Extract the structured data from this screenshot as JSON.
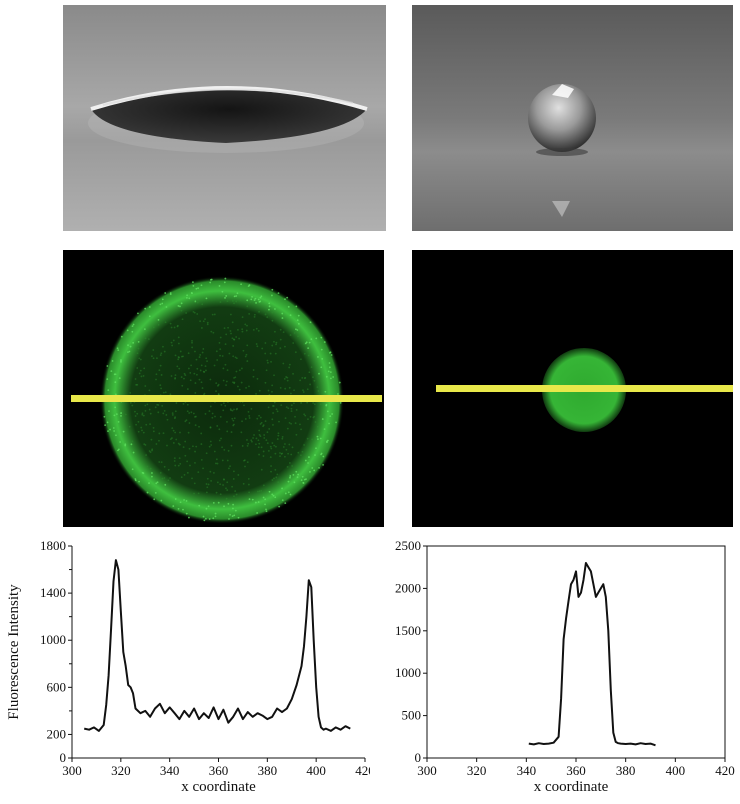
{
  "panels": {
    "top_left": {
      "content": "photo: flat droplet on surface (side view, grayscale)"
    },
    "top_right": {
      "content": "photo: spherical droplet on surface (side view, grayscale)"
    },
    "mid_left": {
      "content": "fluorescence image: green ring with yellow line profile"
    },
    "mid_right": {
      "content": "fluorescence image: filled green disc with yellow line profile"
    }
  },
  "colors": {
    "fluorescence": "#3fbf3f",
    "profile_line": "#e8e84a",
    "plot_line": "#111111"
  },
  "chart_data": [
    {
      "type": "line",
      "xlabel": "x coordinate",
      "ylabel": "Fluorescence Intensity",
      "xlim": [
        300,
        420
      ],
      "ylim": [
        0,
        1800
      ],
      "xticks": [
        300,
        320,
        340,
        360,
        380,
        400,
        420
      ],
      "yticks": [
        0,
        200,
        600,
        1000,
        1400,
        1800
      ],
      "grid": false,
      "series": [
        {
          "x": [
            305,
            307,
            309,
            311,
            313,
            314,
            315,
            316,
            317,
            318,
            319,
            320,
            321,
            322,
            323,
            324,
            325,
            326,
            328,
            330,
            332,
            334,
            336,
            338,
            340,
            342,
            344,
            346,
            348,
            350,
            352,
            354,
            356,
            358,
            360,
            362,
            364,
            366,
            368,
            370,
            372,
            374,
            376,
            378,
            380,
            382,
            384,
            386,
            388,
            390,
            392,
            394,
            395,
            396,
            397,
            398,
            399,
            400,
            401,
            402,
            403,
            404,
            406,
            408,
            410,
            412,
            414
          ],
          "y": [
            250,
            240,
            260,
            230,
            280,
            450,
            700,
            1100,
            1500,
            1680,
            1600,
            1250,
            900,
            780,
            620,
            600,
            550,
            420,
            380,
            400,
            350,
            420,
            460,
            380,
            430,
            380,
            330,
            400,
            350,
            420,
            330,
            380,
            340,
            430,
            330,
            410,
            300,
            350,
            420,
            330,
            390,
            350,
            380,
            360,
            330,
            350,
            420,
            390,
            420,
            500,
            620,
            780,
            950,
            1200,
            1510,
            1450,
            1000,
            600,
            350,
            260,
            240,
            250,
            230,
            260,
            240,
            270,
            250
          ]
        }
      ]
    },
    {
      "type": "line",
      "xlabel": "x coordinate",
      "ylabel": "",
      "xlim": [
        300,
        420
      ],
      "ylim": [
        0,
        2500
      ],
      "xticks": [
        300,
        320,
        340,
        360,
        380,
        400,
        420
      ],
      "yticks": [
        0,
        500,
        1000,
        1500,
        2000,
        2500
      ],
      "grid": false,
      "series": [
        {
          "x": [
            341,
            343,
            345,
            347,
            349,
            351,
            353,
            354,
            355,
            356,
            357,
            358,
            359,
            360,
            361,
            362,
            363,
            364,
            365,
            366,
            367,
            368,
            369,
            370,
            371,
            372,
            373,
            374,
            375,
            376,
            377,
            378,
            380,
            382,
            384,
            386,
            388,
            390,
            392
          ],
          "y": [
            170,
            160,
            175,
            165,
            170,
            180,
            250,
            700,
            1400,
            1650,
            1850,
            2050,
            2100,
            2200,
            1900,
            1950,
            2100,
            2300,
            2250,
            2200,
            2050,
            1900,
            1950,
            2000,
            2050,
            1900,
            1500,
            800,
            300,
            190,
            175,
            170,
            165,
            170,
            160,
            175,
            165,
            170,
            150
          ]
        }
      ]
    }
  ]
}
